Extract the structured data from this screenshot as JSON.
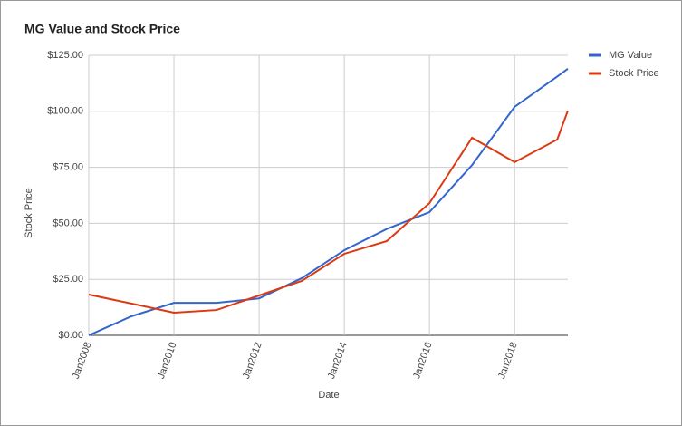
{
  "chart_data": {
    "type": "line",
    "title": "MG Value and Stock Price",
    "x_label": "Date",
    "y_label": "Stock Price",
    "x": [
      2008,
      2009,
      2010,
      2011,
      2012,
      2013,
      2014,
      2015,
      2016,
      2017,
      2018,
      2019,
      2019.25
    ],
    "series": [
      {
        "name": "MG Value",
        "color": "#3366cc",
        "values": [
          0,
          8.5,
          14.5,
          14.5,
          16.5,
          25.5,
          38,
          47.5,
          55,
          76,
          102,
          115.5,
          119
        ]
      },
      {
        "name": "Stock Price",
        "color": "#dc3912",
        "values": [
          18.2,
          14.2,
          10.1,
          11.3,
          17.8,
          24.3,
          36.4,
          42.1,
          59,
          88.2,
          77.3,
          87.4,
          100.3
        ]
      }
    ],
    "xlim": [
      2008,
      2019.25
    ],
    "xticks": [
      {
        "value": 2008,
        "label": "Jan2008"
      },
      {
        "value": 2010,
        "label": "Jan2010"
      },
      {
        "value": 2012,
        "label": "Jan2012"
      },
      {
        "value": 2014,
        "label": "Jan2014"
      },
      {
        "value": 2016,
        "label": "Jan2016"
      },
      {
        "value": 2018,
        "label": "Jan2018"
      }
    ],
    "ylim": [
      0,
      125
    ],
    "yticks": [
      {
        "value": 0,
        "label": "$0.00"
      },
      {
        "value": 25,
        "label": "$25.00"
      },
      {
        "value": 50,
        "label": "$50.00"
      },
      {
        "value": 75,
        "label": "$75.00"
      },
      {
        "value": 100,
        "label": "$100.00"
      },
      {
        "value": 125,
        "label": "$125.00"
      }
    ],
    "grid": true,
    "legend": "right"
  }
}
